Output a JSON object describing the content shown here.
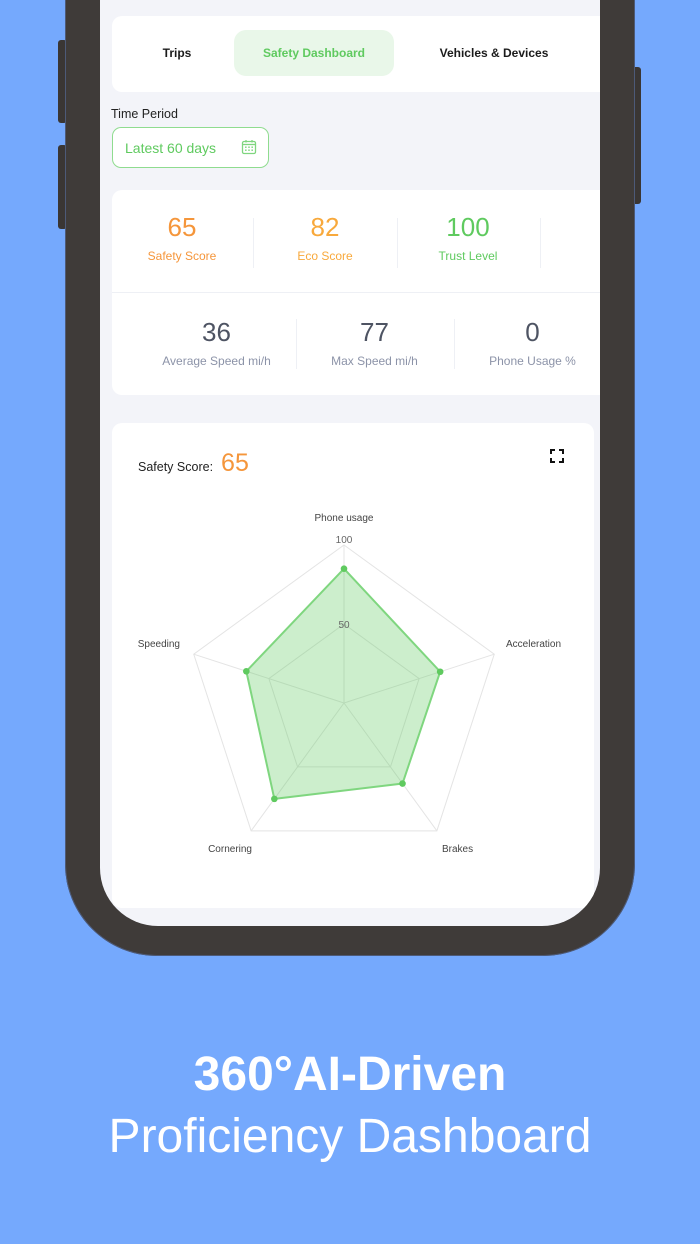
{
  "tabs": [
    {
      "label": "Trips",
      "active": false
    },
    {
      "label": "Safety Dashboard",
      "active": true
    },
    {
      "label": "Vehicles & Devices",
      "active": false
    }
  ],
  "time_period": {
    "label": "Time Period",
    "value": "Latest 60 days",
    "icon": "calendar-icon"
  },
  "stats_top": [
    {
      "value": "65",
      "label": "Safety Score",
      "color": "#f5963b"
    },
    {
      "value": "82",
      "label": "Eco Score",
      "color": "#f8a93c"
    },
    {
      "value": "100",
      "label": "Trust Level",
      "color": "#5fca5f"
    }
  ],
  "stats_bottom": [
    {
      "value": "36",
      "label": "Average Speed mi/h"
    },
    {
      "value": "77",
      "label": "Max Speed mi/h"
    },
    {
      "value": "0",
      "label": "Phone Usage %"
    }
  ],
  "chart_card": {
    "title_label": "Safety Score:",
    "title_value": "65",
    "expand_icon": "expand-icon"
  },
  "chart_data": {
    "type": "radar",
    "title": "Safety Score: 65",
    "categories": [
      "Phone usage",
      "Acceleration",
      "Brakes",
      "Cornering",
      "Speeding"
    ],
    "values": [
      85,
      64,
      63,
      75,
      65
    ],
    "rlim": [
      0,
      100
    ],
    "tick_labels": [
      "50",
      "100"
    ],
    "color": "#5fca5f"
  },
  "footer": {
    "line1": "360°AI-Driven",
    "line2": "Proficiency Dashboard"
  },
  "colors": {
    "background": "#75a9fd",
    "accent_green": "#5fca5f",
    "accent_orange": "#f5963b",
    "frame": "#3f3b39"
  }
}
